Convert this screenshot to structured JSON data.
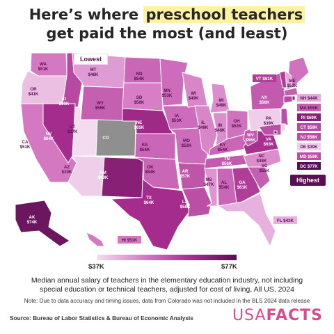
{
  "title": {
    "line1_prefix": "Here’s where ",
    "line1_highlight": "preschool teachers",
    "line2": "get paid the most (and least)"
  },
  "callouts": {
    "lowest": "Lowest",
    "highest": "Highest"
  },
  "legend": {
    "min_label": "$37K",
    "max_label": "$77K",
    "min_value": 37,
    "max_value": 77,
    "colors": [
      "#f3dcef",
      "#d67cc5",
      "#a62d8d",
      "#5a0f52"
    ]
  },
  "states": [
    {
      "abbr": "WA",
      "value": "$51K",
      "amount": 51
    },
    {
      "abbr": "OR",
      "value": "$41K",
      "amount": 41
    },
    {
      "abbr": "CA",
      "value": "$51K",
      "amount": 51
    },
    {
      "abbr": "ID",
      "value": "$59K",
      "amount": 59
    },
    {
      "abbr": "NV",
      "value": "$64K",
      "amount": 64
    },
    {
      "abbr": "MT",
      "value": "$46K",
      "amount": 46
    },
    {
      "abbr": "WY",
      "value": "$55K",
      "amount": 55
    },
    {
      "abbr": "UT",
      "value": "$37K",
      "amount": 37
    },
    {
      "abbr": "AZ",
      "value": "$39K",
      "amount": 39
    },
    {
      "abbr": "CO",
      "value": "",
      "amount": null
    },
    {
      "abbr": "NM",
      "value": "$69K",
      "amount": 69
    },
    {
      "abbr": "ND",
      "value": "$54K",
      "amount": 54
    },
    {
      "abbr": "SD",
      "value": "$50K",
      "amount": 50
    },
    {
      "abbr": "NE",
      "value": "$65K",
      "amount": 65
    },
    {
      "abbr": "KS",
      "value": "$54K",
      "amount": 54
    },
    {
      "abbr": "OK",
      "value": "$54K",
      "amount": 54
    },
    {
      "abbr": "TX",
      "value": "$64K",
      "amount": 64
    },
    {
      "abbr": "MN",
      "value": "$53K",
      "amount": 53
    },
    {
      "abbr": "IA",
      "value": "$53K",
      "amount": 53
    },
    {
      "abbr": "MO",
      "value": "$53K",
      "amount": 53
    },
    {
      "abbr": "AR",
      "value": "$57K",
      "amount": 57
    },
    {
      "abbr": "LA",
      "value": "$58K",
      "amount": 58
    },
    {
      "abbr": "WI",
      "value": "$49K",
      "amount": 49
    },
    {
      "abbr": "IL",
      "value": "$49K",
      "amount": 49
    },
    {
      "abbr": "MI",
      "value": "$48K",
      "amount": 48
    },
    {
      "abbr": "IN",
      "value": "$48K",
      "amount": 48
    },
    {
      "abbr": "OH",
      "value": "$52K",
      "amount": 52
    },
    {
      "abbr": "KY",
      "value": "$54K",
      "amount": 54
    },
    {
      "abbr": "TN",
      "value": "$56K",
      "amount": 56
    },
    {
      "abbr": "MS",
      "value": "$47K",
      "amount": 47
    },
    {
      "abbr": "AL",
      "value": "$54K",
      "amount": 54
    },
    {
      "abbr": "GA",
      "value": "$61K",
      "amount": 61
    },
    {
      "abbr": "FL",
      "value": "$43K",
      "amount": 43
    },
    {
      "abbr": "SC",
      "value": "$55K",
      "amount": 55
    },
    {
      "abbr": "NC",
      "value": "$48K",
      "amount": 48
    },
    {
      "abbr": "VA",
      "value": "$63K",
      "amount": 63
    },
    {
      "abbr": "WV",
      "value": "$56K",
      "amount": 56
    },
    {
      "abbr": "PA",
      "value": "$39K",
      "amount": 39
    },
    {
      "abbr": "NY",
      "value": "$56K",
      "amount": 56
    },
    {
      "abbr": "VT",
      "value": "$61K",
      "amount": 61
    },
    {
      "abbr": "ME",
      "value": "$52K",
      "amount": 52
    },
    {
      "abbr": "NH",
      "value": "$44K",
      "amount": 44
    },
    {
      "abbr": "MA",
      "value": "$55K",
      "amount": 55
    },
    {
      "abbr": "RI",
      "value": "$69K",
      "amount": 69
    },
    {
      "abbr": "CT",
      "value": "$59K",
      "amount": 59
    },
    {
      "abbr": "NJ",
      "value": "$58K",
      "amount": 58
    },
    {
      "abbr": "DE",
      "value": "$39K",
      "amount": 39
    },
    {
      "abbr": "MD",
      "value": "$58K",
      "amount": 58
    },
    {
      "abbr": "DC",
      "value": "$77K",
      "amount": 77
    },
    {
      "abbr": "AK",
      "value": "$74K",
      "amount": 74
    },
    {
      "abbr": "HI",
      "value": "$51K",
      "amount": 51
    }
  ],
  "description": {
    "line1": "Median annual salary of teachers in the elementary education industry, not including",
    "line2": "special education or technical teachers, adjusted for cost of living, All US, 2024"
  },
  "note": "Note: Due to data accuracy and timing issues, data from Colorado was not included in the BLS 2024 data release",
  "source": "Source: Bureau of Labor Statistics & Bureau of Economic Analysis",
  "brand": {
    "part1": "USA",
    "part2": "FACTS"
  }
}
